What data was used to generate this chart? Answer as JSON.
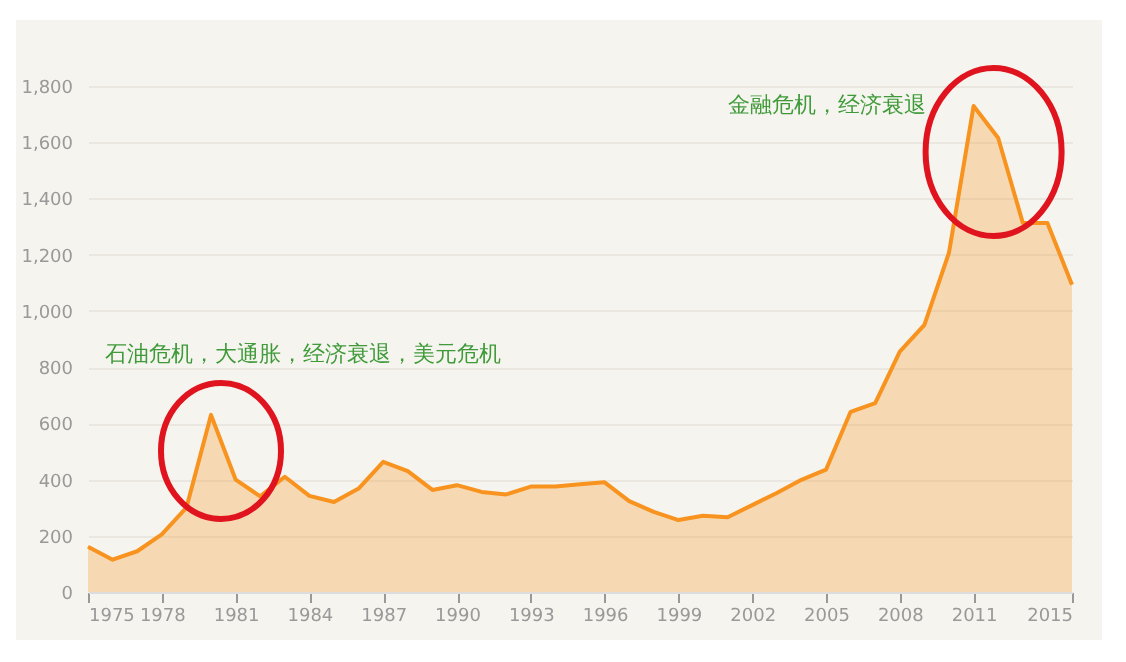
{
  "chart_data": {
    "type": "area",
    "x": [
      1975,
      1976,
      1977,
      1978,
      1979,
      1980,
      1981,
      1982,
      1983,
      1984,
      1985,
      1986,
      1987,
      1988,
      1989,
      1990,
      1991,
      1992,
      1993,
      1994,
      1995,
      1996,
      1997,
      1998,
      1999,
      2000,
      2001,
      2002,
      2003,
      2004,
      2005,
      2006,
      2007,
      2008,
      2009,
      2010,
      2011,
      2012,
      2013,
      2014,
      2015
    ],
    "values": [
      161,
      115,
      145,
      205,
      300,
      630,
      400,
      340,
      410,
      342,
      320,
      368,
      463,
      430,
      363,
      380,
      356,
      347,
      375,
      375,
      383,
      390,
      323,
      285,
      256,
      271,
      266,
      309,
      352,
      399,
      435,
      641,
      672,
      855,
      950,
      1207,
      1729,
      1615,
      1313,
      1313,
      1093
    ],
    "color": "#f7931e",
    "xlim": [
      1975,
      2015
    ],
    "xticks": [
      1975,
      1978,
      1981,
      1984,
      1987,
      1990,
      1993,
      1996,
      1999,
      2002,
      2005,
      2008,
      2011,
      2015
    ],
    "ylim": [
      0,
      1800
    ],
    "yticks": [
      0,
      200,
      400,
      600,
      800,
      {
        "value": 1000,
        "label": "1,000"
      },
      {
        "value": 1200,
        "label": "1,200"
      },
      {
        "value": 1400,
        "label": "1,400"
      },
      {
        "value": 1600,
        "label": "1,600"
      },
      {
        "value": 1800,
        "label": "1,800"
      }
    ],
    "grid": "y",
    "marker": "none",
    "annotations": [
      {
        "text": "石油危机，大通胀，经济衰退，美元危机",
        "x": 1980,
        "y": 630
      },
      {
        "text": "金融危机，经济衰退",
        "x": 2011,
        "y": 1729
      }
    ]
  }
}
